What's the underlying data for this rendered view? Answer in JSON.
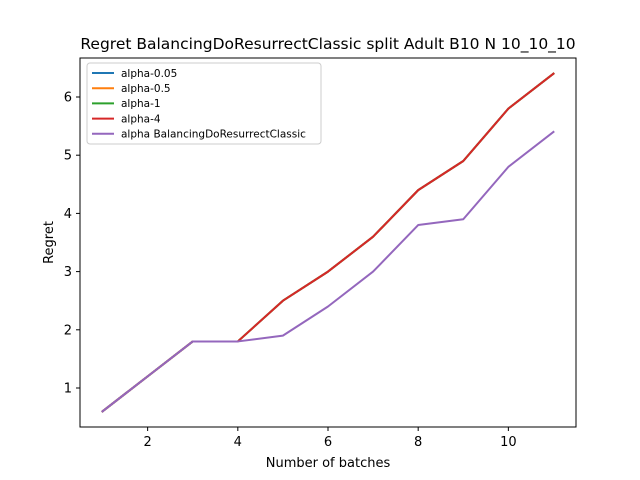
{
  "chart_data": {
    "type": "line",
    "title": "Regret BalancingDoResurrectClassic split Adult B10 N 10_10_10",
    "xlabel": "Number of batches",
    "ylabel": "Regret",
    "xlim": [
      0.5,
      11.5
    ],
    "ylim": [
      0.33,
      6.67
    ],
    "xticks": [
      2,
      4,
      6,
      8,
      10
    ],
    "yticks": [
      1,
      2,
      3,
      4,
      5,
      6
    ],
    "grid": false,
    "legend_position": "top-left",
    "x": [
      1,
      2,
      3,
      4,
      5,
      6,
      7,
      8,
      9,
      10,
      11
    ],
    "series": [
      {
        "name": "alpha-0.05",
        "color": "#1f77b4",
        "values": [
          0.6,
          1.2,
          1.8,
          1.8,
          2.5,
          3.0,
          3.6,
          4.4,
          4.9,
          5.8,
          6.4
        ]
      },
      {
        "name": "alpha-0.5",
        "color": "#ff7f0e",
        "values": [
          0.6,
          1.2,
          1.8,
          1.8,
          2.5,
          3.0,
          3.6,
          4.4,
          4.9,
          5.8,
          6.4
        ]
      },
      {
        "name": "alpha-1",
        "color": "#2ca02c",
        "values": [
          0.6,
          1.2,
          1.8,
          1.8,
          2.5,
          3.0,
          3.6,
          4.4,
          4.9,
          5.8,
          6.4
        ]
      },
      {
        "name": "alpha-4",
        "color": "#d62728",
        "values": [
          0.6,
          1.2,
          1.8,
          1.8,
          2.5,
          3.0,
          3.6,
          4.4,
          4.9,
          5.8,
          6.4
        ]
      },
      {
        "name": "alpha BalancingDoResurrectClassic",
        "color": "#9467bd",
        "values": [
          0.6,
          1.2,
          1.8,
          1.8,
          1.9,
          2.4,
          3.0,
          3.8,
          3.9,
          4.8,
          5.4
        ]
      }
    ]
  }
}
